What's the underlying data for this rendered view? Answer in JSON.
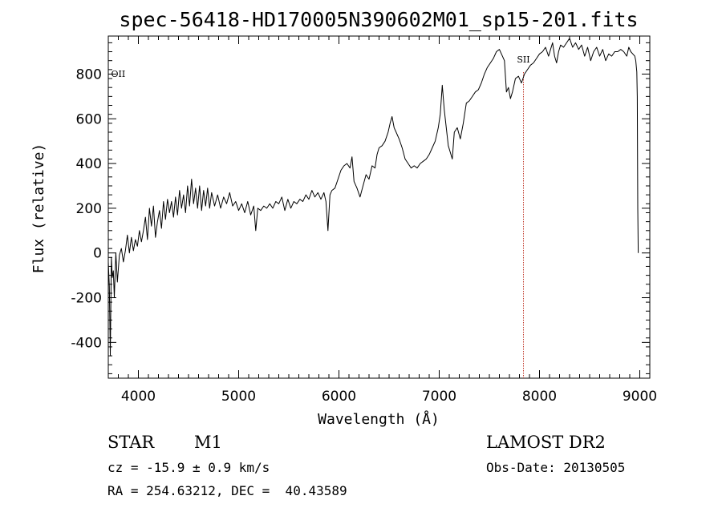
{
  "chart_data": {
    "type": "line",
    "title": "spec-56418-HD170005N390602M01_sp15-201.fits",
    "xlabel": "Wavelength (Å)",
    "ylabel": "Flux (relative)",
    "xlim": [
      3700,
      9100
    ],
    "ylim": [
      -560,
      970
    ],
    "x_ticks": [
      4000,
      5000,
      6000,
      7000,
      8000,
      9000
    ],
    "y_ticks": [
      -400,
      -200,
      0,
      200,
      400,
      600,
      800
    ],
    "grid": false,
    "series": [
      {
        "color": "#000000",
        "points": [
          [
            3700,
            -40
          ],
          [
            3710,
            -150
          ],
          [
            3720,
            -460
          ],
          [
            3730,
            -20
          ],
          [
            3740,
            -110
          ],
          [
            3750,
            -80
          ],
          [
            3760,
            -200
          ],
          [
            3775,
            0
          ],
          [
            3790,
            -130
          ],
          [
            3810,
            -10
          ],
          [
            3830,
            20
          ],
          [
            3850,
            -40
          ],
          [
            3870,
            10
          ],
          [
            3890,
            80
          ],
          [
            3910,
            0
          ],
          [
            3930,
            70
          ],
          [
            3950,
            10
          ],
          [
            3970,
            60
          ],
          [
            3990,
            30
          ],
          [
            4010,
            100
          ],
          [
            4030,
            50
          ],
          [
            4050,
            100
          ],
          [
            4070,
            160
          ],
          [
            4090,
            60
          ],
          [
            4110,
            200
          ],
          [
            4130,
            120
          ],
          [
            4150,
            210
          ],
          [
            4170,
            70
          ],
          [
            4190,
            140
          ],
          [
            4210,
            190
          ],
          [
            4230,
            110
          ],
          [
            4250,
            230
          ],
          [
            4270,
            150
          ],
          [
            4290,
            240
          ],
          [
            4310,
            180
          ],
          [
            4330,
            230
          ],
          [
            4350,
            160
          ],
          [
            4370,
            250
          ],
          [
            4390,
            170
          ],
          [
            4410,
            280
          ],
          [
            4430,
            200
          ],
          [
            4450,
            260
          ],
          [
            4470,
            180
          ],
          [
            4490,
            300
          ],
          [
            4510,
            210
          ],
          [
            4530,
            330
          ],
          [
            4550,
            220
          ],
          [
            4570,
            290
          ],
          [
            4590,
            200
          ],
          [
            4610,
            300
          ],
          [
            4630,
            190
          ],
          [
            4650,
            280
          ],
          [
            4670,
            210
          ],
          [
            4690,
            290
          ],
          [
            4710,
            200
          ],
          [
            4730,
            270
          ],
          [
            4760,
            210
          ],
          [
            4790,
            260
          ],
          [
            4820,
            200
          ],
          [
            4850,
            250
          ],
          [
            4880,
            220
          ],
          [
            4910,
            270
          ],
          [
            4940,
            210
          ],
          [
            4970,
            230
          ],
          [
            5000,
            190
          ],
          [
            5030,
            220
          ],
          [
            5060,
            180
          ],
          [
            5090,
            230
          ],
          [
            5120,
            170
          ],
          [
            5150,
            210
          ],
          [
            5170,
            100
          ],
          [
            5190,
            200
          ],
          [
            5220,
            190
          ],
          [
            5250,
            210
          ],
          [
            5280,
            200
          ],
          [
            5310,
            220
          ],
          [
            5340,
            200
          ],
          [
            5370,
            230
          ],
          [
            5400,
            220
          ],
          [
            5430,
            250
          ],
          [
            5460,
            190
          ],
          [
            5490,
            240
          ],
          [
            5520,
            200
          ],
          [
            5550,
            230
          ],
          [
            5580,
            220
          ],
          [
            5610,
            240
          ],
          [
            5640,
            230
          ],
          [
            5670,
            260
          ],
          [
            5700,
            240
          ],
          [
            5730,
            280
          ],
          [
            5760,
            250
          ],
          [
            5790,
            270
          ],
          [
            5820,
            240
          ],
          [
            5850,
            270
          ],
          [
            5870,
            230
          ],
          [
            5890,
            100
          ],
          [
            5910,
            260
          ],
          [
            5930,
            280
          ],
          [
            5960,
            290
          ],
          [
            5990,
            330
          ],
          [
            6020,
            370
          ],
          [
            6050,
            390
          ],
          [
            6080,
            400
          ],
          [
            6110,
            380
          ],
          [
            6130,
            430
          ],
          [
            6150,
            320
          ],
          [
            6180,
            290
          ],
          [
            6210,
            250
          ],
          [
            6240,
            300
          ],
          [
            6270,
            350
          ],
          [
            6300,
            330
          ],
          [
            6330,
            390
          ],
          [
            6360,
            380
          ],
          [
            6380,
            440
          ],
          [
            6400,
            470
          ],
          [
            6430,
            480
          ],
          [
            6460,
            500
          ],
          [
            6490,
            540
          ],
          [
            6510,
            580
          ],
          [
            6530,
            610
          ],
          [
            6550,
            560
          ],
          [
            6570,
            540
          ],
          [
            6600,
            510
          ],
          [
            6630,
            470
          ],
          [
            6660,
            420
          ],
          [
            6690,
            400
          ],
          [
            6720,
            380
          ],
          [
            6750,
            390
          ],
          [
            6780,
            380
          ],
          [
            6810,
            400
          ],
          [
            6840,
            410
          ],
          [
            6870,
            420
          ],
          [
            6900,
            440
          ],
          [
            6930,
            470
          ],
          [
            6960,
            500
          ],
          [
            6990,
            560
          ],
          [
            7010,
            620
          ],
          [
            7030,
            750
          ],
          [
            7050,
            640
          ],
          [
            7070,
            560
          ],
          [
            7090,
            480
          ],
          [
            7110,
            450
          ],
          [
            7130,
            420
          ],
          [
            7150,
            540
          ],
          [
            7180,
            560
          ],
          [
            7210,
            510
          ],
          [
            7240,
            580
          ],
          [
            7270,
            670
          ],
          [
            7300,
            680
          ],
          [
            7330,
            700
          ],
          [
            7360,
            720
          ],
          [
            7390,
            730
          ],
          [
            7420,
            760
          ],
          [
            7450,
            800
          ],
          [
            7480,
            830
          ],
          [
            7510,
            850
          ],
          [
            7540,
            870
          ],
          [
            7570,
            900
          ],
          [
            7600,
            910
          ],
          [
            7630,
            880
          ],
          [
            7650,
            860
          ],
          [
            7670,
            720
          ],
          [
            7690,
            740
          ],
          [
            7710,
            690
          ],
          [
            7730,
            720
          ],
          [
            7760,
            780
          ],
          [
            7790,
            790
          ],
          [
            7820,
            760
          ],
          [
            7850,
            800
          ],
          [
            7880,
            820
          ],
          [
            7910,
            840
          ],
          [
            7940,
            850
          ],
          [
            7970,
            870
          ],
          [
            8000,
            890
          ],
          [
            8030,
            900
          ],
          [
            8060,
            920
          ],
          [
            8090,
            880
          ],
          [
            8110,
            910
          ],
          [
            8130,
            940
          ],
          [
            8150,
            880
          ],
          [
            8170,
            850
          ],
          [
            8190,
            900
          ],
          [
            8210,
            930
          ],
          [
            8240,
            920
          ],
          [
            8270,
            940
          ],
          [
            8300,
            960
          ],
          [
            8330,
            920
          ],
          [
            8360,
            940
          ],
          [
            8390,
            910
          ],
          [
            8420,
            930
          ],
          [
            8450,
            880
          ],
          [
            8480,
            920
          ],
          [
            8510,
            860
          ],
          [
            8540,
            900
          ],
          [
            8570,
            920
          ],
          [
            8600,
            880
          ],
          [
            8630,
            910
          ],
          [
            8660,
            860
          ],
          [
            8690,
            890
          ],
          [
            8720,
            880
          ],
          [
            8750,
            900
          ],
          [
            8780,
            900
          ],
          [
            8810,
            910
          ],
          [
            8840,
            900
          ],
          [
            8870,
            880
          ],
          [
            8890,
            920
          ],
          [
            8910,
            900
          ],
          [
            8930,
            890
          ],
          [
            8950,
            880
          ],
          [
            8960,
            860
          ],
          [
            8970,
            810
          ],
          [
            8975,
            700
          ],
          [
            8980,
            200
          ],
          [
            8985,
            0
          ]
        ]
      }
    ],
    "annotations": [
      {
        "label": "OII",
        "x": 3728
      },
      {
        "label": "SII",
        "x": 7840,
        "line": true,
        "line_color": "#c0392b"
      }
    ]
  },
  "footer": {
    "class_label": "STAR",
    "subclass_label": "M1",
    "cz_text": "cz = -15.9 ± 0.9 km/s",
    "coords_text": "RA = 254.63212, DEC =  40.43589",
    "survey_label": "LAMOST DR2",
    "obs_date_text": "Obs-Date: 20130505"
  }
}
